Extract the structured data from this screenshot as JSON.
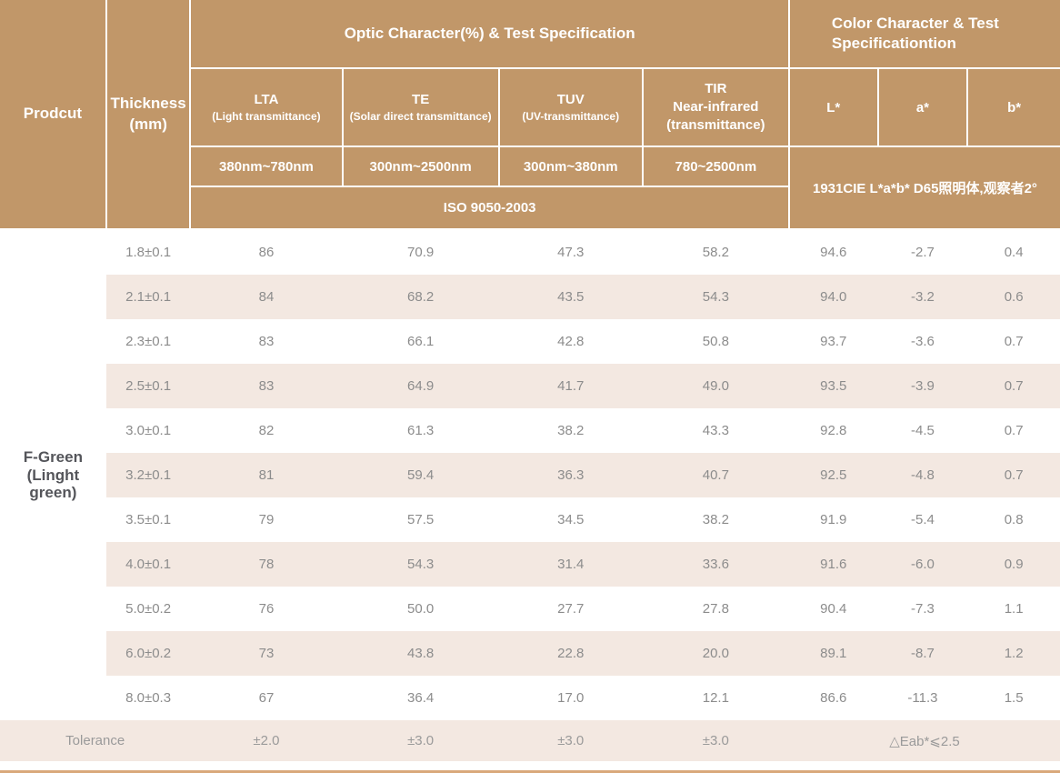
{
  "table": {
    "header": {
      "product": "Prodcut",
      "thickness_line1": "Thickness",
      "thickness_line2": "(mm)",
      "optic_group": "Optic Character(%) & Test Specification",
      "color_group_line1": "Color Character & Test",
      "color_group_line2": "Specificationtion",
      "columns": [
        {
          "abbr": "LTA",
          "sub": "(Light transmittance)",
          "range": "380nm~780nm"
        },
        {
          "abbr": "TE",
          "sub": "(Solar direct transmittance)",
          "range": "300nm~2500nm"
        },
        {
          "abbr": "TUV",
          "sub": "(UV-transmittance)",
          "range": "300nm~380nm"
        },
        {
          "abbr": "TIR",
          "line2": "Near-infrared",
          "sub": "(transmittance)",
          "range": "780~2500nm"
        }
      ],
      "color_columns": [
        "L*",
        "a*",
        "b*"
      ],
      "iso": "ISO 9050-2003",
      "cie": "1931CIE L*a*b*  D65照明体,观察者2°"
    },
    "product_label": [
      "F-Green",
      "(Linght",
      "green)"
    ],
    "rows": [
      {
        "thickness": "1.8±0.1",
        "values": [
          "86",
          "70.9",
          "47.3",
          "58.2",
          "94.6",
          "-2.7",
          "0.4"
        ]
      },
      {
        "thickness": "2.1±0.1",
        "values": [
          "84",
          "68.2",
          "43.5",
          "54.3",
          "94.0",
          "-3.2",
          "0.6"
        ]
      },
      {
        "thickness": "2.3±0.1",
        "values": [
          "83",
          "66.1",
          "42.8",
          "50.8",
          "93.7",
          "-3.6",
          "0.7"
        ]
      },
      {
        "thickness": "2.5±0.1",
        "values": [
          "83",
          "64.9",
          "41.7",
          "49.0",
          "93.5",
          "-3.9",
          "0.7"
        ]
      },
      {
        "thickness": "3.0±0.1",
        "values": [
          "82",
          "61.3",
          "38.2",
          "43.3",
          "92.8",
          "-4.5",
          "0.7"
        ]
      },
      {
        "thickness": "3.2±0.1",
        "values": [
          "81",
          "59.4",
          "36.3",
          "40.7",
          "92.5",
          "-4.8",
          "0.7"
        ]
      },
      {
        "thickness": "3.5±0.1",
        "values": [
          "79",
          "57.5",
          "34.5",
          "38.2",
          "91.9",
          "-5.4",
          "0.8"
        ]
      },
      {
        "thickness": "4.0±0.1",
        "values": [
          "78",
          "54.3",
          "31.4",
          "33.6",
          "91.6",
          "-6.0",
          "0.9"
        ]
      },
      {
        "thickness": "5.0±0.2",
        "values": [
          "76",
          "50.0",
          "27.7",
          "27.8",
          "90.4",
          "-7.3",
          "1.1"
        ]
      },
      {
        "thickness": "6.0±0.2",
        "values": [
          "73",
          "43.8",
          "22.8",
          "20.0",
          "89.1",
          "-8.7",
          "1.2"
        ]
      },
      {
        "thickness": "8.0±0.3",
        "values": [
          "67",
          "36.4",
          "17.0",
          "12.1",
          "86.6",
          "-11.3",
          "1.5"
        ]
      }
    ],
    "tolerance": {
      "label": "Tolerance",
      "values": [
        "±2.0",
        "±3.0",
        "±3.0",
        "±3.0"
      ],
      "color_value": "△Eab*⩽2.5"
    },
    "colors": {
      "header_bg": "#c19769",
      "stripe_bg": "#f3e8e1",
      "bottom_border": "#d9a97b",
      "header_text": "#ffffff",
      "data_text": "#8c8c8c",
      "product_text": "#54555a"
    }
  }
}
